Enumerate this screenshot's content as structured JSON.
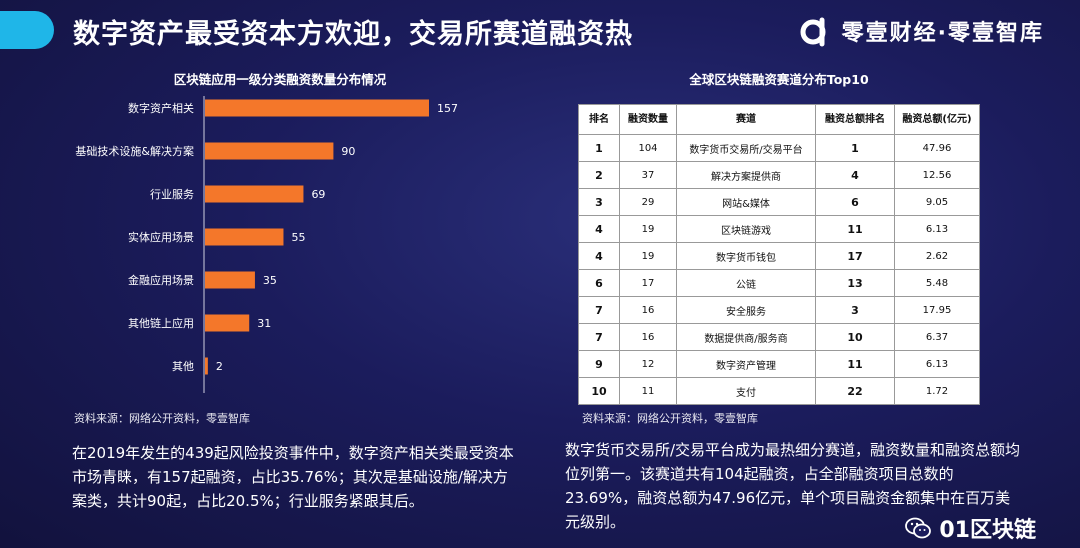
{
  "header": {
    "title": "数字资产最受资本方欢迎，交易所赛道融资热",
    "brand": "零壹财经·零壹智库",
    "accent_color": "#1fb6e8"
  },
  "left": {
    "source": "资料来源：网络公开资料，零壹智库",
    "description": "在2019年发生的439起风险投资事件中，数字资产相关类最受资本市场青睐，有157起融资，占比35.76%；其次是基础设施/解决方案类，共计90起，占比20.5%；行业服务紧跟其后。"
  },
  "chart_data": {
    "type": "bar",
    "orientation": "horizontal",
    "title": "区块链应用一级分类融资数量分布情况",
    "categories": [
      "数字资产相关",
      "基础技术设施&解决方案",
      "行业服务",
      "实体应用场景",
      "金融应用场景",
      "其他链上应用",
      "其他"
    ],
    "values": [
      157,
      90,
      69,
      55,
      35,
      31,
      2
    ],
    "bar_color": "#f4772a",
    "xlim": [
      0,
      157
    ],
    "grid": false,
    "legend": "none"
  },
  "right": {
    "table_title": "全球区块链融资赛道分布Top10",
    "headers": [
      "排名",
      "融资数量",
      "赛道",
      "融资总额排名",
      "融资总额(亿元)"
    ],
    "rows": [
      [
        "1",
        "104",
        "数字货币交易所/交易平台",
        "1",
        "47.96"
      ],
      [
        "2",
        "37",
        "解决方案提供商",
        "4",
        "12.56"
      ],
      [
        "3",
        "29",
        "网站&媒体",
        "6",
        "9.05"
      ],
      [
        "4",
        "19",
        "区块链游戏",
        "11",
        "6.13"
      ],
      [
        "4",
        "19",
        "数字货币钱包",
        "17",
        "2.62"
      ],
      [
        "6",
        "17",
        "公链",
        "13",
        "5.48"
      ],
      [
        "7",
        "16",
        "安全服务",
        "3",
        "17.95"
      ],
      [
        "7",
        "16",
        "数据提供商/服务商",
        "10",
        "6.37"
      ],
      [
        "9",
        "12",
        "数字资产管理",
        "11",
        "6.13"
      ],
      [
        "10",
        "11",
        "支付",
        "22",
        "1.72"
      ]
    ],
    "source": "资料来源：网络公开资料，零壹智库",
    "description": "数字货币交易所/交易平台成为最热细分赛道，融资数量和融资总额均位列第一。该赛道共有104起融资，占全部融资项目总数的23.69%，融资总额为47.96亿元，单个项目融资金额集中在百万美元级别。"
  },
  "footer": {
    "wechat_label": "01区块链"
  }
}
